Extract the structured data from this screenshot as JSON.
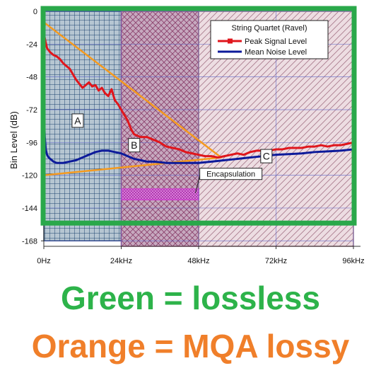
{
  "chart_data": {
    "type": "line",
    "title": "String Quartet (Ravel)",
    "ylabel": "Bin Level (dB)",
    "xlabel": "",
    "xlim": [
      0,
      96
    ],
    "ylim": [
      -172,
      0
    ],
    "x_ticks": [
      0,
      24,
      48,
      72,
      96
    ],
    "x_tick_labels": [
      "0Hz",
      "24kHz",
      "48kHz",
      "72kHz",
      "96kHz"
    ],
    "y_ticks": [
      0,
      -24,
      -48,
      -72,
      -96,
      -120,
      -144,
      -168
    ],
    "y_tick_labels": [
      "0",
      "-24",
      "-48",
      "-72",
      "-96",
      "-120",
      "-144",
      "-168"
    ],
    "grid": true,
    "legend_position": "top-right",
    "series": [
      {
        "name": "Peak Signal Level",
        "color": "#e0161c",
        "x": [
          0,
          0.5,
          1,
          2,
          3,
          4,
          5,
          6,
          7,
          8,
          9,
          10,
          11,
          12,
          13,
          14,
          15,
          16,
          17,
          18,
          19,
          20,
          21,
          22,
          23,
          24,
          25,
          26,
          27,
          28,
          30,
          32,
          34,
          36,
          38,
          40,
          42,
          44,
          46,
          48,
          50,
          52,
          54,
          56,
          58,
          60,
          62,
          64,
          66,
          68,
          70,
          72,
          74,
          76,
          78,
          80,
          82,
          84,
          86,
          88,
          90,
          92,
          94,
          96
        ],
        "y": [
          -16,
          -22,
          -27,
          -30,
          -32,
          -33,
          -35,
          -38,
          -40,
          -42,
          -46,
          -50,
          -53,
          -56,
          -54,
          -52,
          -55,
          -54,
          -58,
          -56,
          -60,
          -62,
          -57,
          -65,
          -68,
          -72,
          -76,
          -80,
          -86,
          -90,
          -92,
          -92,
          -94,
          -96,
          -99,
          -100,
          -101,
          -103,
          -104,
          -105,
          -106,
          -106,
          -107,
          -106,
          -105,
          -104,
          -105,
          -103,
          -102,
          -102,
          -102,
          -101,
          -101,
          -100,
          -100,
          -100,
          -99,
          -99,
          -98,
          -99,
          -98,
          -98,
          -97,
          -96
        ]
      },
      {
        "name": "Mean Noise Level",
        "color": "#0c1a9a",
        "x": [
          0,
          0.3,
          0.6,
          1,
          1.5,
          2,
          3,
          4,
          6,
          8,
          10,
          12,
          14,
          16,
          18,
          20,
          22,
          24,
          26,
          28,
          30,
          32,
          34,
          36,
          38,
          40,
          42,
          44,
          46,
          48,
          50,
          52,
          54,
          56,
          58,
          60,
          62,
          64,
          66,
          68,
          70,
          72,
          76,
          80,
          84,
          88,
          92,
          96
        ],
        "y": [
          -74,
          -92,
          -101,
          -105,
          -107,
          -108,
          -110,
          -111,
          -111,
          -110,
          -109,
          -107,
          -105,
          -103,
          -102,
          -102,
          -103,
          -104,
          -106,
          -108,
          -109,
          -110,
          -110,
          -110.5,
          -111,
          -111,
          -111,
          -111,
          -111,
          -111,
          -110.5,
          -110,
          -109.5,
          -109,
          -108.5,
          -108,
          -107.5,
          -107,
          -106.5,
          -106,
          -105.5,
          -105,
          -104.5,
          -104,
          -103,
          -102.5,
          -102,
          -101
        ]
      }
    ],
    "annotations": [
      {
        "label": "A",
        "x": 10.5,
        "y": -80
      },
      {
        "label": "B",
        "x": 28,
        "y": -98
      },
      {
        "label": "C",
        "x": 69,
        "y": -106
      },
      {
        "label": "Encapsulation",
        "x": 58,
        "y": -119
      }
    ],
    "regions": [
      {
        "name": "A",
        "x": [
          0,
          24
        ],
        "y": [
          -168,
          0
        ],
        "color": "#1a3a6a"
      },
      {
        "name": "B",
        "x": [
          24,
          48
        ],
        "y": [
          -172,
          0
        ],
        "color": "#a04a7a"
      },
      {
        "name": "C",
        "x": [
          48,
          96
        ],
        "y": [
          -172,
          0
        ],
        "color": "#a07080"
      },
      {
        "name": "encapsulation",
        "x": [
          24,
          48
        ],
        "y": [
          -138,
          -130
        ],
        "color": "#cc44cc"
      }
    ],
    "mqa_triangle": {
      "color": "#f59a1e",
      "points": [
        [
          0,
          -8
        ],
        [
          55,
          -107
        ],
        [
          0,
          -120
        ]
      ]
    },
    "lossless_box": {
      "color": "#2aa84a",
      "x": [
        0,
        96
      ],
      "y": [
        -155,
        0
      ]
    }
  },
  "captions": {
    "green": "Green = lossless",
    "orange": "Orange = MQA lossy"
  }
}
